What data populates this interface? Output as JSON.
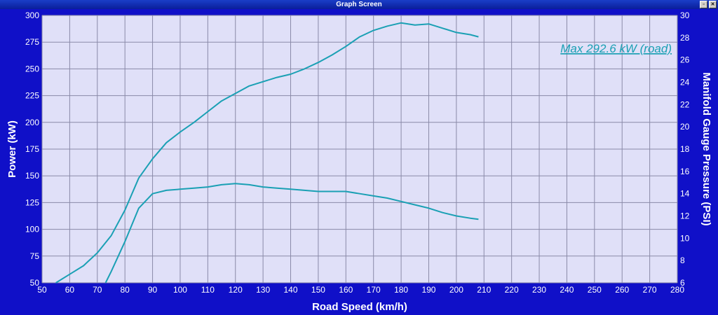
{
  "window": {
    "title": "Graph Screen",
    "buttons": [
      {
        "name": "restore",
        "glyph": "▫"
      },
      {
        "name": "close",
        "glyph": "✕"
      }
    ]
  },
  "colors": {
    "background": "#1010c8",
    "plot_area": "#e0e0f8",
    "grid": "#8a8aa8",
    "curve": "#1aa0b4",
    "text": "#ffffff"
  },
  "chart_data": {
    "type": "line",
    "xlabel": "Road Speed (km/h)",
    "ylabel": "Power (kW)",
    "y2label": "Manifold Gauge Pressure (PSI)",
    "xlim": [
      50,
      280
    ],
    "ylim": [
      50,
      300
    ],
    "y2lim": [
      6,
      30
    ],
    "xticks": [
      50,
      60,
      70,
      80,
      90,
      100,
      110,
      120,
      130,
      140,
      150,
      160,
      170,
      180,
      190,
      200,
      210,
      220,
      230,
      240,
      250,
      260,
      270,
      280
    ],
    "yticks": [
      50,
      75,
      100,
      125,
      150,
      175,
      200,
      225,
      250,
      275,
      300
    ],
    "y2ticks": [
      6,
      8,
      10,
      12,
      14,
      16,
      18,
      20,
      22,
      24,
      26,
      28,
      30
    ],
    "grid": true,
    "annotation": "Max 292.6 kW (road)",
    "series": [
      {
        "axis": "left",
        "x": [
          55,
          60,
          65,
          70,
          75,
          80,
          85,
          90,
          95,
          100,
          105,
          110,
          115,
          120,
          125,
          130,
          135,
          140,
          145,
          150,
          155,
          160,
          165,
          170,
          175,
          180,
          185,
          190,
          195,
          200,
          205,
          208
        ],
        "y": [
          50,
          58,
          66,
          78,
          94,
          118,
          148,
          166,
          181,
          191,
          200,
          210,
          220,
          227,
          234,
          238,
          242,
          245,
          250,
          256,
          263,
          271,
          280,
          286,
          290,
          293,
          291,
          292,
          288,
          284,
          282,
          280
        ]
      },
      {
        "axis": "right",
        "x": [
          73,
          75,
          80,
          85,
          90,
          95,
          100,
          105,
          110,
          115,
          120,
          125,
          130,
          135,
          140,
          145,
          150,
          155,
          160,
          165,
          170,
          175,
          180,
          185,
          190,
          195,
          200,
          205,
          208
        ],
        "y": [
          6.0,
          7.0,
          9.7,
          12.7,
          14.0,
          14.3,
          14.4,
          14.5,
          14.6,
          14.8,
          14.9,
          14.8,
          14.6,
          14.5,
          14.4,
          14.3,
          14.2,
          14.2,
          14.2,
          14.0,
          13.8,
          13.6,
          13.3,
          13.0,
          12.7,
          12.3,
          12.0,
          11.8,
          11.7
        ]
      }
    ]
  }
}
